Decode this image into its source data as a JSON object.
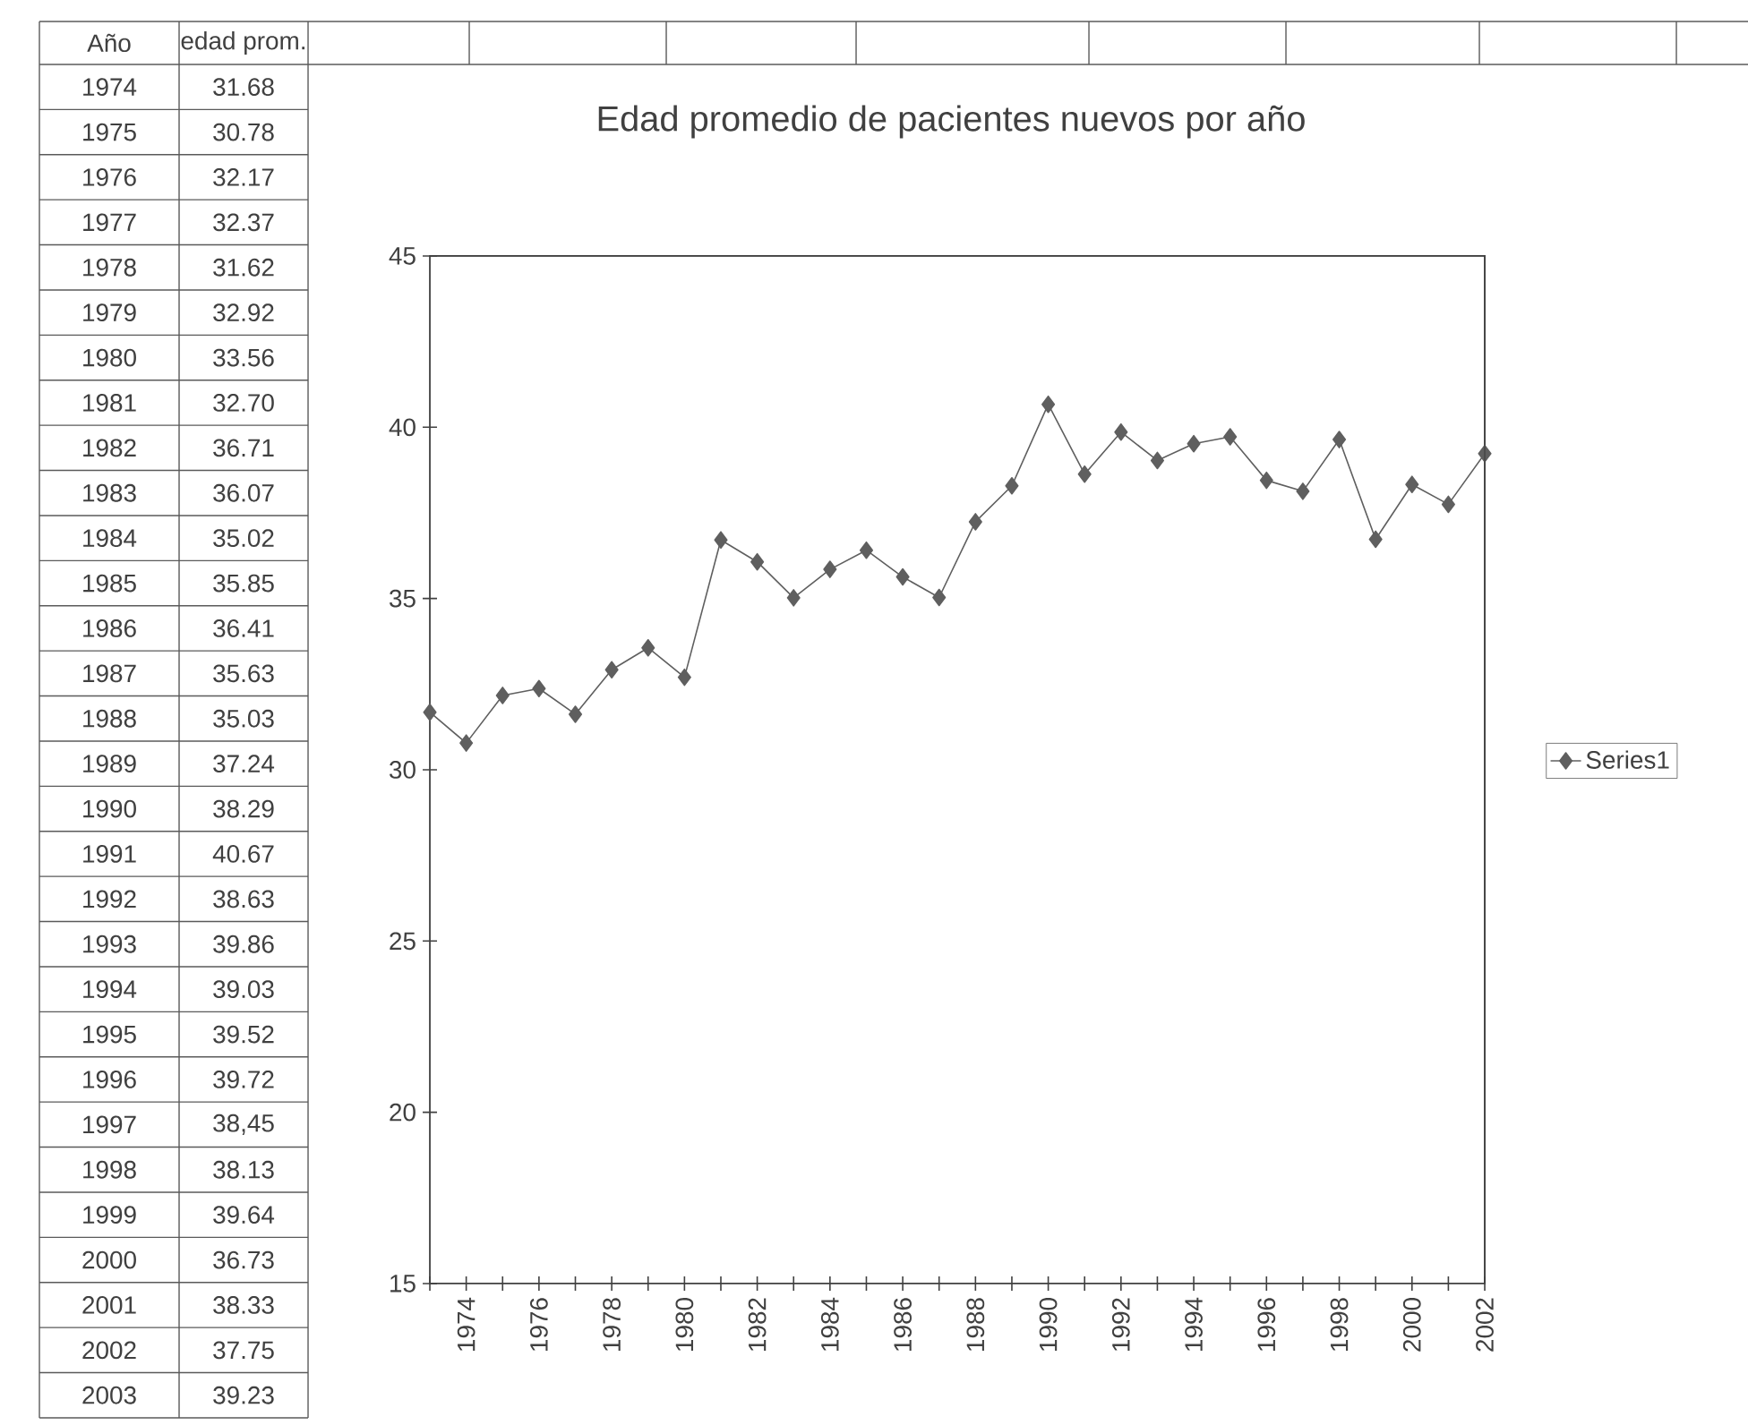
{
  "chart_data": {
    "type": "line",
    "title": "Edad promedio de pacientes nuevos por año",
    "categories": [
      null,
      "1974",
      null,
      "1976",
      null,
      "1978",
      null,
      "1980",
      null,
      "1982",
      null,
      "1984",
      null,
      "1986",
      null,
      "1988",
      null,
      "1990",
      null,
      "1992",
      null,
      "1994",
      null,
      "1996",
      null,
      "1998",
      null,
      "2000",
      null,
      "2002"
    ],
    "series": [
      {
        "name": "Series1",
        "color": "#5f5f5f",
        "values": [
          31.68,
          30.78,
          32.17,
          32.37,
          31.62,
          32.92,
          33.56,
          32.7,
          36.71,
          36.07,
          35.02,
          35.85,
          36.41,
          35.63,
          35.03,
          37.24,
          38.29,
          40.67,
          38.63,
          39.86,
          39.03,
          39.52,
          39.72,
          38.45,
          38.13,
          39.64,
          36.73,
          38.33,
          37.75,
          39.23
        ]
      }
    ],
    "ylim": [
      15,
      45
    ],
    "yticks": [
      15,
      20,
      25,
      30,
      35,
      40,
      45
    ],
    "marker": "diamond",
    "line_style": "solid",
    "legend": "right",
    "annotations": [
      "Año",
      "edad prom.",
      "1974",
      "31.68",
      "1975",
      "30.78",
      "1976",
      "32.17",
      "1977",
      "32.37",
      "1978",
      "31.62",
      "1979",
      "32.92",
      "1980",
      "33.56",
      "1981",
      "32.70",
      "1982",
      "36.71",
      "1983",
      "36.07",
      "1984",
      "35.02",
      "1985",
      "35.85",
      "1986",
      "36.41",
      "1987",
      "35.63",
      "1988",
      "35.03",
      "1989",
      "37.24",
      "1990",
      "38.29",
      "1991",
      "40.67",
      "1992",
      "38.63",
      "1993",
      "39.86",
      "1994",
      "39.03",
      "1995",
      "39.52",
      "1996",
      "39.72",
      "1997",
      "38,45",
      "1998",
      "38.13",
      "1999",
      "39.64",
      "2000",
      "36.73",
      "2001",
      "38.33",
      "2002",
      "37.75",
      "2003",
      "39.23"
    ]
  }
}
